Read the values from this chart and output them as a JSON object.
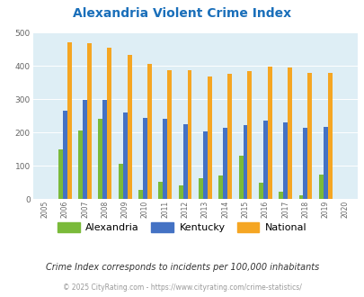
{
  "title": "Alexandria Violent Crime Index",
  "years": [
    2005,
    2006,
    2007,
    2008,
    2009,
    2010,
    2011,
    2012,
    2013,
    2014,
    2015,
    2016,
    2017,
    2018,
    2019,
    2020
  ],
  "alexandria": [
    0,
    150,
    207,
    242,
    106,
    27,
    53,
    40,
    62,
    70,
    129,
    50,
    22,
    10,
    74,
    0
  ],
  "kentucky": [
    0,
    265,
    298,
    298,
    260,
    245,
    241,
    225,
    203,
    215,
    221,
    235,
    229,
    215,
    217,
    0
  ],
  "national": [
    0,
    472,
    467,
    455,
    432,
    407,
    388,
    387,
    367,
    377,
    384,
    397,
    394,
    380,
    380,
    0
  ],
  "alexandria_color": "#7aba3a",
  "kentucky_color": "#4472c4",
  "national_color": "#f5a623",
  "bg_color": "#ffffff",
  "plot_bg_color": "#deeef5",
  "title_color": "#1a6fba",
  "subtitle": "Crime Index corresponds to incidents per 100,000 inhabitants",
  "footer": "© 2025 CityRating.com - https://www.cityrating.com/crime-statistics/",
  "ylim": [
    0,
    500
  ],
  "yticks": [
    0,
    100,
    200,
    300,
    400,
    500
  ],
  "bar_width": 0.22
}
